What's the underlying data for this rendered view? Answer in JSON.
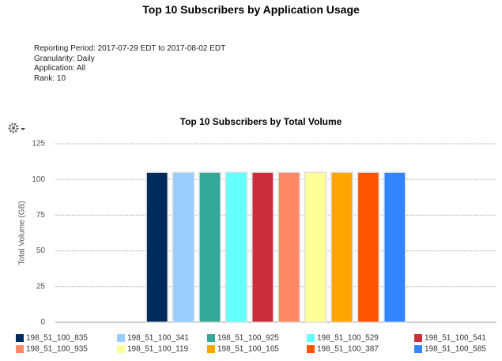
{
  "report": {
    "title": "Top 10 Subscribers by Application Usage",
    "details": [
      "Reporting Period: 2017-07-29 EDT to 2017-08-02 EDT",
      "Granularity: Daily",
      "Application: All",
      "Rank: 10"
    ]
  },
  "chart_data": {
    "type": "bar",
    "title": "Top 10 Subscribers by Total Volume",
    "y_label": "Total Volume (GB)",
    "categories": [
      null
    ],
    "series": [
      {
        "name": "198_51_100_835",
        "color": "#002b5c",
        "values": [
          105
        ]
      },
      {
        "name": "198_51_100_341",
        "color": "#99ccff",
        "values": [
          105
        ]
      },
      {
        "name": "198_51_100_925",
        "color": "#33a896",
        "values": [
          105
        ]
      },
      {
        "name": "198_51_100_529",
        "color": "#66ffff",
        "values": [
          105
        ]
      },
      {
        "name": "198_51_100_541",
        "color": "#cc2d3a",
        "values": [
          105
        ]
      },
      {
        "name": "198_51_100_935",
        "color": "#ff8866",
        "values": [
          105
        ]
      },
      {
        "name": "198_51_100_119",
        "color": "#ffff99",
        "values": [
          105
        ]
      },
      {
        "name": "198_51_100_165",
        "color": "#ffa500",
        "values": [
          105
        ]
      },
      {
        "name": "198_51_100_387",
        "color": "#ff5500",
        "values": [
          105
        ]
      },
      {
        "name": "198_51_100_585",
        "color": "#3385ff",
        "values": [
          105
        ]
      }
    ],
    "ylim": [
      0,
      125
    ],
    "yticks": [
      0,
      25,
      50,
      75,
      100,
      125
    ],
    "grid": true
  }
}
